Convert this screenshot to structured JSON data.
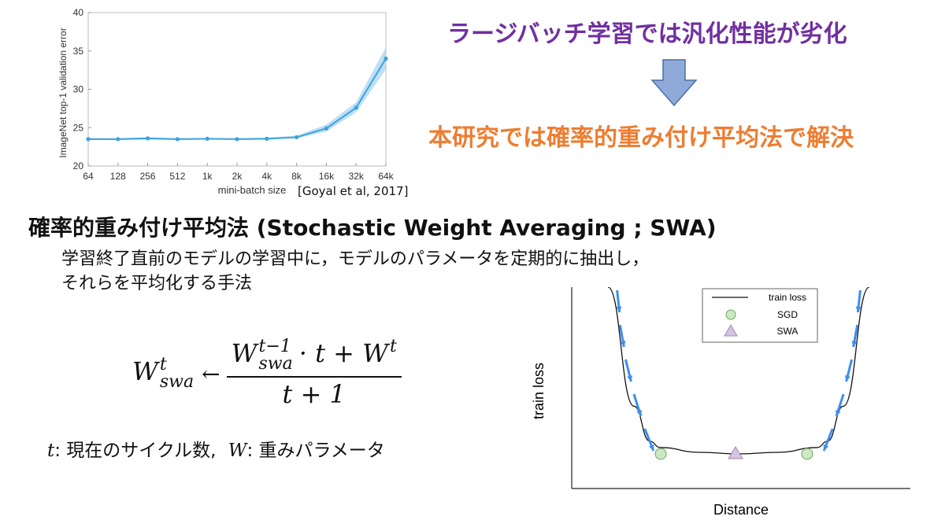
{
  "headline": {
    "top": "ラージバッチ学習では汎化性能が劣化",
    "bottom": "本研究では確率的重み付け平均法で解決"
  },
  "citation": "[Goyal et al, 2017]",
  "section_title": "確率的重み付け平均法 (Stochastic Weight Averaging ; SWA)",
  "description": {
    "line1": "学習終了直前のモデルの学習中に，モデルのパラメータを定期的に抽出し，",
    "line2": "それらを平均化する手法"
  },
  "formula": {
    "lhs": "W",
    "lhs_sup": "t",
    "lhs_sub": "swa",
    "arrow": "←",
    "num_w": "W",
    "num_sup": "t−1",
    "num_sub": "swa",
    "num_rest": "· t + W",
    "num_sup2": "t",
    "denominator": "t + 1"
  },
  "formula_note": {
    "t_symbol": "t",
    "t_text": ": 現在のサイクル数,",
    "w_symbol": "W",
    "w_text": ": 重みパラメータ"
  },
  "colors": {
    "purple": "#7030a0",
    "orange": "#ed7d31",
    "line_blue": "#3ba3e0",
    "band_blue": "#a8d4f0",
    "arrow_fill": "#8fa9d9",
    "sgd_fill": "#cde8c4",
    "swa_fill": "#d4c4e0",
    "sgd_arrow": "#3d8ef0"
  },
  "chart_data": [
    {
      "type": "line",
      "title": "",
      "xlabel": "mini-batch size",
      "ylabel": "ImageNet top-1 validation error",
      "categories": [
        "64",
        "128",
        "256",
        "512",
        "1k",
        "2k",
        "4k",
        "8k",
        "16k",
        "32k",
        "64k"
      ],
      "values": [
        23.5,
        23.5,
        23.6,
        23.5,
        23.55,
        23.5,
        23.55,
        23.75,
        24.9,
        27.6,
        34.0
      ],
      "band_lower": [
        23.4,
        23.4,
        23.45,
        23.4,
        23.45,
        23.4,
        23.45,
        23.6,
        24.5,
        27.0,
        32.6
      ],
      "band_upper": [
        23.65,
        23.6,
        23.75,
        23.6,
        23.65,
        23.6,
        23.7,
        23.95,
        25.4,
        28.3,
        35.5
      ],
      "yticks": [
        "20",
        "25",
        "30",
        "35",
        "40"
      ],
      "ylim": [
        20,
        40
      ],
      "grid": false
    },
    {
      "type": "line",
      "title": "",
      "xlabel": "Distance",
      "ylabel": "train loss",
      "legend": {
        "placement": "top-right",
        "entries": [
          {
            "label": "train loss",
            "marker": "line"
          },
          {
            "label": "SGD",
            "marker": "circle"
          },
          {
            "label": "SWA",
            "marker": "triangle"
          }
        ]
      },
      "curve": [
        [
          0.0,
          1.05
        ],
        [
          0.1,
          0.3
        ],
        [
          0.16,
          0.08
        ],
        [
          0.2,
          0.04
        ],
        [
          0.35,
          0.01
        ],
        [
          0.5,
          0.0
        ],
        [
          0.65,
          0.01
        ],
        [
          0.8,
          0.04
        ],
        [
          0.84,
          0.08
        ],
        [
          0.9,
          0.3
        ],
        [
          1.0,
          1.05
        ]
      ],
      "sgd_points": [
        [
          0.22,
          0.0
        ],
        [
          0.78,
          0.0
        ]
      ],
      "swa_point": [
        0.5,
        0.0
      ],
      "arrow_count_per_side": 5,
      "xlim": [
        0,
        1
      ],
      "ylim": [
        0,
        1.05
      ]
    }
  ]
}
